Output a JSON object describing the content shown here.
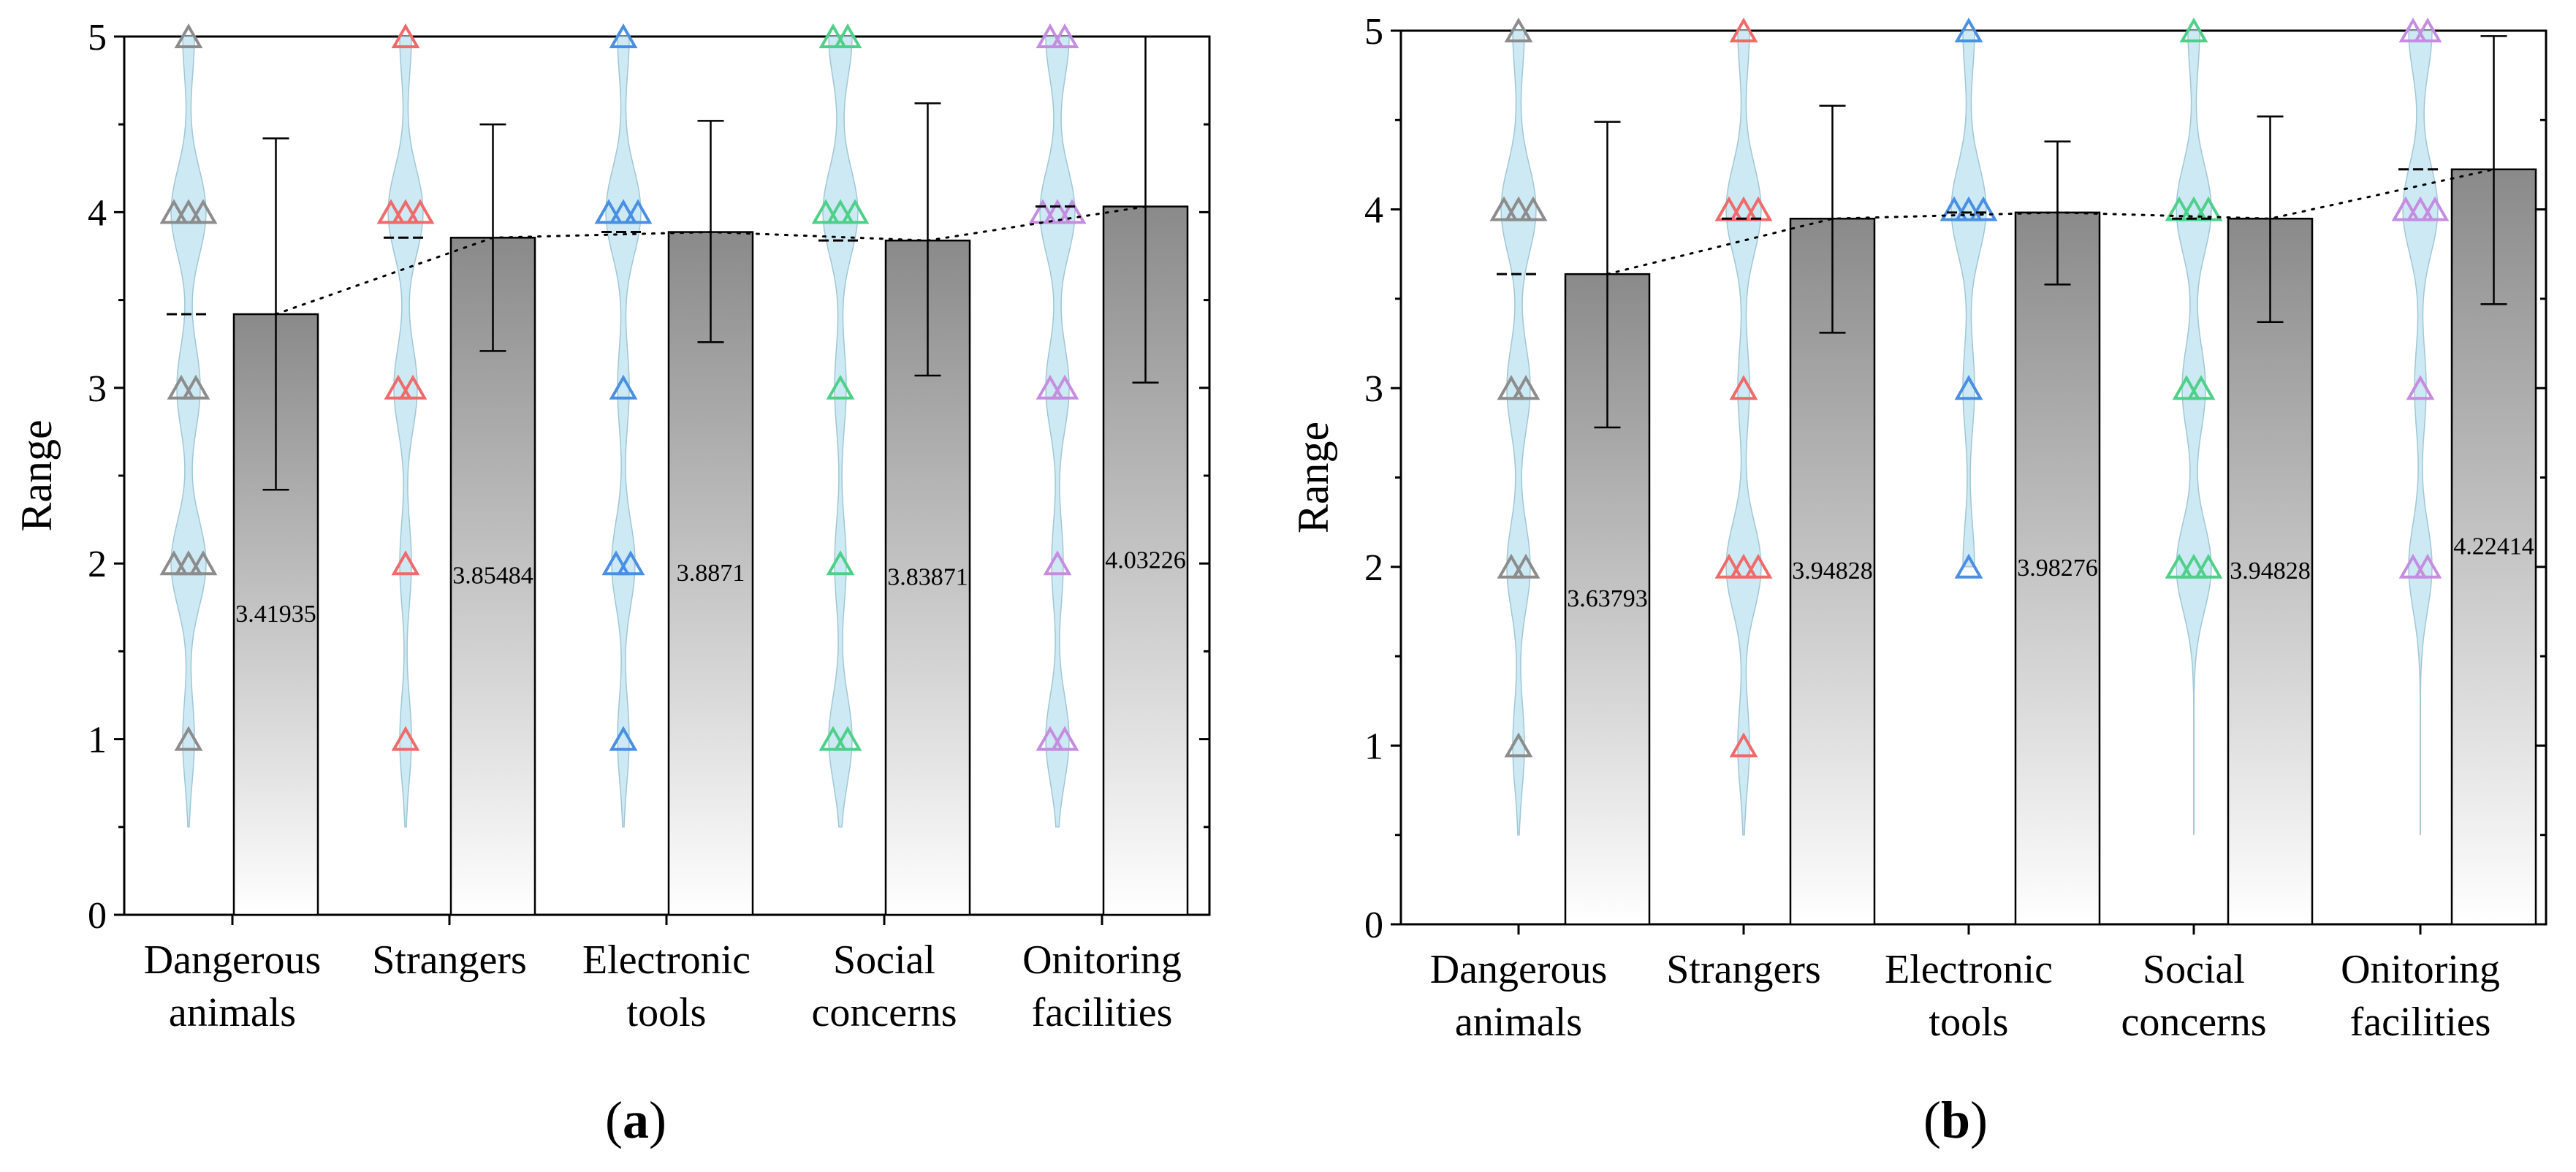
{
  "chart_data": [
    {
      "type": "bar",
      "panel": "a",
      "ylabel": "Range",
      "xlabel": "",
      "ylim": [
        0,
        5
      ],
      "yticks": [
        "0",
        "1",
        "2",
        "3",
        "4",
        "5"
      ],
      "categories": [
        [
          "Dangerous",
          "animals"
        ],
        [
          "Strangers"
        ],
        [
          "Electronic",
          "tools"
        ],
        [
          "Social",
          "concerns"
        ],
        [
          "Onitoring",
          "facilities"
        ]
      ],
      "values": [
        3.41935,
        3.85484,
        3.8871,
        3.83871,
        4.03226
      ],
      "value_labels": [
        "3.41935",
        "3.85484",
        "3.8871",
        "3.83871",
        "4.03226"
      ],
      "error_bars": [
        {
          "low": 2.42,
          "high": 4.42
        },
        {
          "low": 3.21,
          "high": 4.5
        },
        {
          "low": 3.26,
          "high": 4.52
        },
        {
          "low": 3.07,
          "high": 4.62
        },
        {
          "low": 3.03,
          "high": 5.0
        }
      ],
      "violins": [
        {
          "min": 0.5,
          "max": 5.0,
          "points": [
            {
              "v": 1,
              "n": 1
            },
            {
              "v": 2,
              "n": 3
            },
            {
              "v": 3,
              "n": 2
            },
            {
              "v": 4,
              "n": 3
            },
            {
              "v": 5,
              "n": 1
            }
          ]
        },
        {
          "min": 0.5,
          "max": 5.0,
          "points": [
            {
              "v": 1,
              "n": 1
            },
            {
              "v": 2,
              "n": 1
            },
            {
              "v": 3,
              "n": 2
            },
            {
              "v": 4,
              "n": 3
            },
            {
              "v": 5,
              "n": 1
            }
          ]
        },
        {
          "min": 0.5,
          "max": 5.0,
          "points": [
            {
              "v": 1,
              "n": 1
            },
            {
              "v": 2,
              "n": 2
            },
            {
              "v": 3,
              "n": 1
            },
            {
              "v": 4,
              "n": 3
            },
            {
              "v": 5,
              "n": 1
            }
          ]
        },
        {
          "min": 0.5,
          "max": 5.0,
          "points": [
            {
              "v": 1,
              "n": 2
            },
            {
              "v": 2,
              "n": 1
            },
            {
              "v": 3,
              "n": 1
            },
            {
              "v": 4,
              "n": 3
            },
            {
              "v": 5,
              "n": 2
            }
          ]
        },
        {
          "min": 0.5,
          "max": 5.0,
          "points": [
            {
              "v": 1,
              "n": 2
            },
            {
              "v": 2,
              "n": 1
            },
            {
              "v": 3,
              "n": 2
            },
            {
              "v": 4,
              "n": 3
            },
            {
              "v": 5,
              "n": 2
            }
          ]
        }
      ],
      "series_colors": [
        "#8c8c8c",
        "#f06a6a",
        "#4a90e2",
        "#4fd08a",
        "#c58de0"
      ],
      "violin_fill": "#cdeaf4",
      "caption": "a"
    },
    {
      "type": "bar",
      "panel": "b",
      "ylabel": "Range",
      "xlabel": "",
      "ylim": [
        0,
        5
      ],
      "yticks": [
        "0",
        "1",
        "2",
        "3",
        "4",
        "5"
      ],
      "categories": [
        [
          "Dangerous",
          "animals"
        ],
        [
          "Strangers"
        ],
        [
          "Electronic",
          "tools"
        ],
        [
          "Social",
          "concerns"
        ],
        [
          "Onitoring",
          "facilities"
        ]
      ],
      "values": [
        3.63793,
        3.94828,
        3.98276,
        3.94828,
        4.22414
      ],
      "value_labels": [
        "3.63793",
        "3.94828",
        "3.98276",
        "3.94828",
        "4.22414"
      ],
      "error_bars": [
        {
          "low": 2.78,
          "high": 4.49
        },
        {
          "low": 3.31,
          "high": 4.58
        },
        {
          "low": 3.58,
          "high": 4.38
        },
        {
          "low": 3.37,
          "high": 4.52
        },
        {
          "low": 3.47,
          "high": 4.97
        }
      ],
      "violins": [
        {
          "min": 0.5,
          "max": 5.0,
          "points": [
            {
              "v": 1,
              "n": 1
            },
            {
              "v": 2,
              "n": 2
            },
            {
              "v": 3,
              "n": 2
            },
            {
              "v": 4,
              "n": 3
            },
            {
              "v": 5,
              "n": 1
            }
          ]
        },
        {
          "min": 0.5,
          "max": 5.0,
          "points": [
            {
              "v": 1,
              "n": 1
            },
            {
              "v": 2,
              "n": 3
            },
            {
              "v": 3,
              "n": 1
            },
            {
              "v": 4,
              "n": 3
            },
            {
              "v": 5,
              "n": 1
            }
          ]
        },
        {
          "min": 2.0,
          "max": 5.0,
          "points": [
            {
              "v": 2,
              "n": 1
            },
            {
              "v": 3,
              "n": 1
            },
            {
              "v": 4,
              "n": 3
            },
            {
              "v": 5,
              "n": 1
            }
          ]
        },
        {
          "min": 0.5,
          "max": 5.0,
          "points": [
            {
              "v": 2,
              "n": 3
            },
            {
              "v": 3,
              "n": 2
            },
            {
              "v": 4,
              "n": 3
            },
            {
              "v": 5,
              "n": 1
            }
          ]
        },
        {
          "min": 0.5,
          "max": 5.0,
          "points": [
            {
              "v": 2,
              "n": 2
            },
            {
              "v": 3,
              "n": 1
            },
            {
              "v": 4,
              "n": 3
            },
            {
              "v": 5,
              "n": 2
            }
          ]
        }
      ],
      "series_colors": [
        "#8c8c8c",
        "#f06a6a",
        "#4a90e2",
        "#4fd08a",
        "#c58de0"
      ],
      "violin_fill": "#cdeaf4",
      "caption": "b"
    }
  ]
}
